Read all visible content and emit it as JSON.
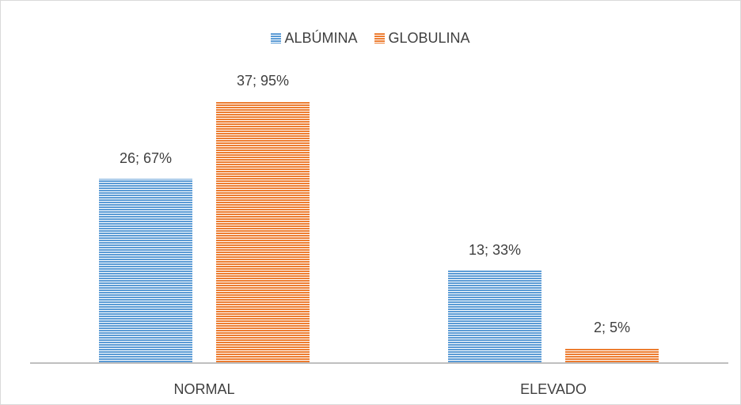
{
  "chart_data": {
    "type": "bar",
    "title": "",
    "xlabel": "",
    "ylabel": "",
    "categories": [
      "NORMAL",
      "ELEVADO"
    ],
    "series": [
      {
        "name": "ALBÚMINA",
        "color": "#5b9bd5",
        "values": [
          26,
          13
        ],
        "labels": [
          "26; 67%",
          "13; 33%"
        ]
      },
      {
        "name": "GLOBULINA",
        "color": "#ed7d31",
        "values": [
          37,
          2
        ],
        "labels": [
          "37; 95%",
          "2; 5%"
        ]
      }
    ],
    "ylim": [
      0,
      40
    ],
    "grid": false,
    "legend_position": "top",
    "bar_pattern": "horizontal-stripes"
  }
}
